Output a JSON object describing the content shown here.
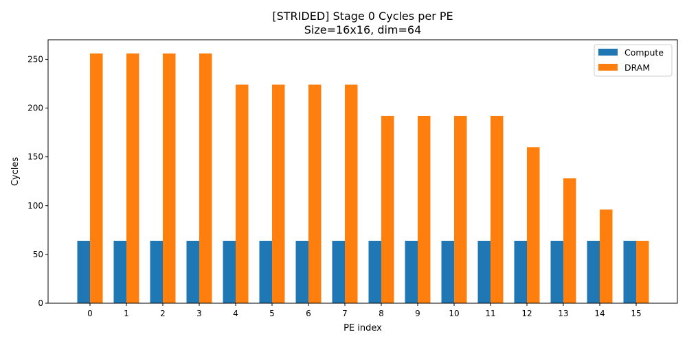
{
  "chart_data": {
    "type": "bar",
    "title": "[STRIDED] Stage 0 Cycles per PE",
    "subtitle": "Size=16x16, dim=64",
    "xlabel": "PE index",
    "ylabel": "Cycles",
    "categories": [
      "0",
      "1",
      "2",
      "3",
      "4",
      "5",
      "6",
      "7",
      "8",
      "9",
      "10",
      "11",
      "12",
      "13",
      "14",
      "15"
    ],
    "ylim": [
      0,
      270
    ],
    "yticks": [
      0,
      50,
      100,
      150,
      200,
      250
    ],
    "grid": false,
    "legend_position": "top-right",
    "series": [
      {
        "name": "Compute",
        "color": "#1f77b4",
        "values": [
          64,
          64,
          64,
          64,
          64,
          64,
          64,
          64,
          64,
          64,
          64,
          64,
          64,
          64,
          64,
          64
        ]
      },
      {
        "name": "DRAM",
        "color": "#ff7f0e",
        "values": [
          256,
          256,
          256,
          256,
          224,
          224,
          224,
          224,
          192,
          192,
          192,
          192,
          160,
          128,
          96,
          64
        ]
      }
    ]
  }
}
